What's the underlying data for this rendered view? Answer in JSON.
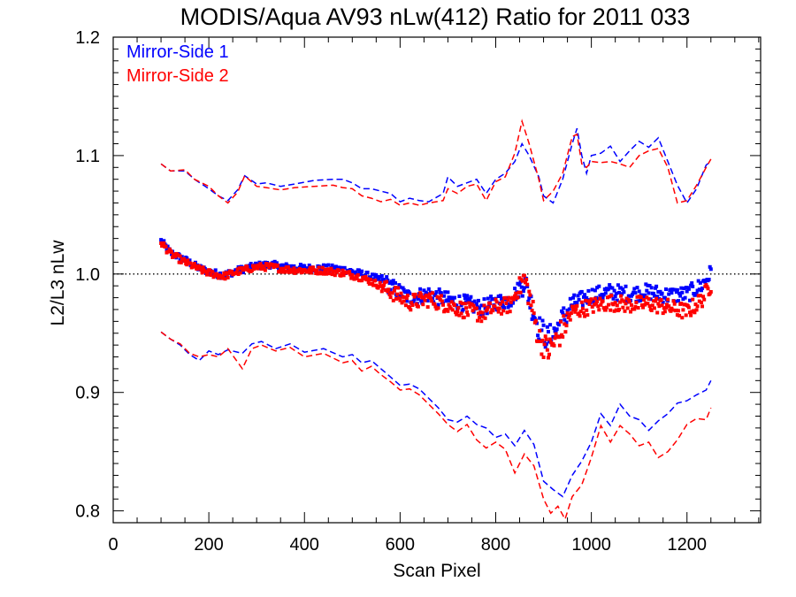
{
  "chart_data": {
    "type": "scatter",
    "title": "MODIS/Aqua AV93 nLw(412) Ratio for 2011 033",
    "xlabel": "Scan Pixel",
    "ylabel": "L2/L3 nLw",
    "xlim": [
      0,
      1354
    ],
    "ylim": [
      0.79,
      1.2
    ],
    "x_ticks": [
      "0",
      "200",
      "400",
      "600",
      "800",
      "1000",
      "1200"
    ],
    "y_ticks": [
      "0.8",
      "0.9",
      "1.0",
      "1.1",
      "1.2"
    ],
    "reference_line": {
      "y": 1.0,
      "style": "dotted"
    },
    "legend": {
      "placement": "top-left"
    },
    "series": [
      {
        "name": "Mirror-Side 1",
        "color": "#0000ff",
        "mean_anchors": [
          [
            100,
            1.028
          ],
          [
            120,
            1.018
          ],
          [
            150,
            1.012
          ],
          [
            180,
            1.005
          ],
          [
            200,
            1.002
          ],
          [
            230,
            0.999
          ],
          [
            260,
            1.003
          ],
          [
            300,
            1.007
          ],
          [
            330,
            1.008
          ],
          [
            360,
            1.006
          ],
          [
            400,
            1.005
          ],
          [
            440,
            1.005
          ],
          [
            480,
            1.004
          ],
          [
            520,
            1.0
          ],
          [
            560,
            0.995
          ],
          [
            590,
            0.987
          ],
          [
            620,
            0.98
          ],
          [
            660,
            0.983
          ],
          [
            700,
            0.978
          ],
          [
            740,
            0.975
          ],
          [
            770,
            0.971
          ],
          [
            800,
            0.976
          ],
          [
            830,
            0.978
          ],
          [
            850,
            0.988
          ],
          [
            860,
            0.995
          ],
          [
            870,
            0.98
          ],
          [
            890,
            0.955
          ],
          [
            910,
            0.945
          ],
          [
            930,
            0.955
          ],
          [
            960,
            0.975
          ],
          [
            1000,
            0.982
          ],
          [
            1040,
            0.985
          ],
          [
            1080,
            0.983
          ],
          [
            1120,
            0.985
          ],
          [
            1160,
            0.982
          ],
          [
            1200,
            0.983
          ],
          [
            1230,
            0.99
          ],
          [
            1250,
            1.001
          ]
        ],
        "upper_envelope": [
          [
            100,
            1.093
          ],
          [
            120,
            1.087
          ],
          [
            150,
            1.087
          ],
          [
            170,
            1.08
          ],
          [
            200,
            1.072
          ],
          [
            220,
            1.066
          ],
          [
            240,
            1.062
          ],
          [
            260,
            1.071
          ],
          [
            275,
            1.083
          ],
          [
            300,
            1.076
          ],
          [
            320,
            1.077
          ],
          [
            350,
            1.074
          ],
          [
            380,
            1.076
          ],
          [
            420,
            1.079
          ],
          [
            460,
            1.08
          ],
          [
            480,
            1.08
          ],
          [
            500,
            1.077
          ],
          [
            520,
            1.072
          ],
          [
            540,
            1.072
          ],
          [
            560,
            1.07
          ],
          [
            580,
            1.068
          ],
          [
            600,
            1.061
          ],
          [
            620,
            1.064
          ],
          [
            640,
            1.062
          ],
          [
            660,
            1.061
          ],
          [
            690,
            1.068
          ],
          [
            700,
            1.082
          ],
          [
            720,
            1.074
          ],
          [
            740,
            1.077
          ],
          [
            760,
            1.08
          ],
          [
            780,
            1.068
          ],
          [
            800,
            1.08
          ],
          [
            820,
            1.085
          ],
          [
            840,
            1.095
          ],
          [
            855,
            1.11
          ],
          [
            870,
            1.1
          ],
          [
            890,
            1.082
          ],
          [
            900,
            1.066
          ],
          [
            920,
            1.06
          ],
          [
            940,
            1.08
          ],
          [
            960,
            1.11
          ],
          [
            970,
            1.123
          ],
          [
            980,
            1.1
          ],
          [
            990,
            1.085
          ],
          [
            1000,
            1.1
          ],
          [
            1020,
            1.102
          ],
          [
            1040,
            1.108
          ],
          [
            1060,
            1.095
          ],
          [
            1080,
            1.104
          ],
          [
            1100,
            1.112
          ],
          [
            1120,
            1.107
          ],
          [
            1140,
            1.115
          ],
          [
            1160,
            1.095
          ],
          [
            1180,
            1.075
          ],
          [
            1200,
            1.06
          ],
          [
            1220,
            1.072
          ],
          [
            1240,
            1.092
          ],
          [
            1250,
            1.095
          ]
        ],
        "lower_envelope": [
          [
            100,
            0.951
          ],
          [
            120,
            0.945
          ],
          [
            140,
            0.94
          ],
          [
            160,
            0.932
          ],
          [
            180,
            0.927
          ],
          [
            200,
            0.935
          ],
          [
            220,
            0.932
          ],
          [
            240,
            0.936
          ],
          [
            270,
            0.933
          ],
          [
            290,
            0.941
          ],
          [
            310,
            0.943
          ],
          [
            340,
            0.937
          ],
          [
            370,
            0.941
          ],
          [
            400,
            0.934
          ],
          [
            440,
            0.937
          ],
          [
            480,
            0.93
          ],
          [
            500,
            0.932
          ],
          [
            520,
            0.925
          ],
          [
            540,
            0.927
          ],
          [
            560,
            0.92
          ],
          [
            580,
            0.913
          ],
          [
            600,
            0.906
          ],
          [
            620,
            0.907
          ],
          [
            640,
            0.903
          ],
          [
            660,
            0.895
          ],
          [
            680,
            0.887
          ],
          [
            700,
            0.877
          ],
          [
            720,
            0.875
          ],
          [
            740,
            0.88
          ],
          [
            760,
            0.873
          ],
          [
            780,
            0.87
          ],
          [
            800,
            0.862
          ],
          [
            820,
            0.865
          ],
          [
            840,
            0.855
          ],
          [
            860,
            0.868
          ],
          [
            880,
            0.856
          ],
          [
            900,
            0.825
          ],
          [
            920,
            0.818
          ],
          [
            940,
            0.812
          ],
          [
            960,
            0.83
          ],
          [
            980,
            0.842
          ],
          [
            1000,
            0.858
          ],
          [
            1020,
            0.882
          ],
          [
            1040,
            0.872
          ],
          [
            1060,
            0.89
          ],
          [
            1080,
            0.88
          ],
          [
            1100,
            0.877
          ],
          [
            1120,
            0.868
          ],
          [
            1140,
            0.876
          ],
          [
            1160,
            0.882
          ],
          [
            1180,
            0.891
          ],
          [
            1200,
            0.893
          ],
          [
            1220,
            0.898
          ],
          [
            1240,
            0.902
          ],
          [
            1250,
            0.91
          ]
        ]
      },
      {
        "name": "Mirror-Side 2",
        "color": "#ff0000",
        "mean_anchors": [
          [
            100,
            1.027
          ],
          [
            120,
            1.017
          ],
          [
            150,
            1.01
          ],
          [
            180,
            1.004
          ],
          [
            200,
            1.001
          ],
          [
            230,
            0.998
          ],
          [
            260,
            1.002
          ],
          [
            300,
            1.006
          ],
          [
            330,
            1.006
          ],
          [
            360,
            1.004
          ],
          [
            400,
            1.003
          ],
          [
            440,
            1.003
          ],
          [
            480,
            1.001
          ],
          [
            520,
            0.997
          ],
          [
            560,
            0.99
          ],
          [
            590,
            0.983
          ],
          [
            620,
            0.976
          ],
          [
            660,
            0.979
          ],
          [
            700,
            0.974
          ],
          [
            740,
            0.969
          ],
          [
            770,
            0.966
          ],
          [
            800,
            0.972
          ],
          [
            830,
            0.974
          ],
          [
            850,
            0.99
          ],
          [
            860,
            0.996
          ],
          [
            870,
            0.982
          ],
          [
            890,
            0.946
          ],
          [
            910,
            0.935
          ],
          [
            930,
            0.946
          ],
          [
            960,
            0.968
          ],
          [
            1000,
            0.973
          ],
          [
            1040,
            0.976
          ],
          [
            1080,
            0.974
          ],
          [
            1120,
            0.975
          ],
          [
            1160,
            0.972
          ],
          [
            1200,
            0.968
          ],
          [
            1230,
            0.978
          ],
          [
            1250,
            0.991
          ]
        ],
        "upper_envelope": [
          [
            100,
            1.093
          ],
          [
            120,
            1.087
          ],
          [
            150,
            1.088
          ],
          [
            170,
            1.08
          ],
          [
            200,
            1.074
          ],
          [
            220,
            1.066
          ],
          [
            240,
            1.06
          ],
          [
            260,
            1.069
          ],
          [
            275,
            1.083
          ],
          [
            300,
            1.074
          ],
          [
            320,
            1.073
          ],
          [
            350,
            1.071
          ],
          [
            380,
            1.073
          ],
          [
            420,
            1.074
          ],
          [
            460,
            1.075
          ],
          [
            480,
            1.073
          ],
          [
            500,
            1.072
          ],
          [
            520,
            1.066
          ],
          [
            540,
            1.064
          ],
          [
            560,
            1.061
          ],
          [
            580,
            1.063
          ],
          [
            600,
            1.058
          ],
          [
            620,
            1.06
          ],
          [
            640,
            1.058
          ],
          [
            660,
            1.06
          ],
          [
            690,
            1.062
          ],
          [
            700,
            1.072
          ],
          [
            720,
            1.068
          ],
          [
            740,
            1.074
          ],
          [
            760,
            1.076
          ],
          [
            780,
            1.062
          ],
          [
            800,
            1.078
          ],
          [
            820,
            1.082
          ],
          [
            840,
            1.102
          ],
          [
            855,
            1.129
          ],
          [
            870,
            1.11
          ],
          [
            890,
            1.08
          ],
          [
            900,
            1.062
          ],
          [
            920,
            1.07
          ],
          [
            940,
            1.085
          ],
          [
            960,
            1.116
          ],
          [
            970,
            1.118
          ],
          [
            980,
            1.093
          ],
          [
            990,
            1.09
          ],
          [
            1000,
            1.095
          ],
          [
            1020,
            1.094
          ],
          [
            1040,
            1.095
          ],
          [
            1060,
            1.093
          ],
          [
            1080,
            1.09
          ],
          [
            1100,
            1.1
          ],
          [
            1120,
            1.104
          ],
          [
            1140,
            1.106
          ],
          [
            1160,
            1.09
          ],
          [
            1180,
            1.06
          ],
          [
            1200,
            1.062
          ],
          [
            1220,
            1.075
          ],
          [
            1240,
            1.09
          ],
          [
            1250,
            1.097
          ]
        ],
        "lower_envelope": [
          [
            100,
            0.951
          ],
          [
            120,
            0.945
          ],
          [
            140,
            0.941
          ],
          [
            160,
            0.933
          ],
          [
            180,
            0.93
          ],
          [
            200,
            0.932
          ],
          [
            220,
            0.93
          ],
          [
            240,
            0.937
          ],
          [
            270,
            0.92
          ],
          [
            290,
            0.937
          ],
          [
            310,
            0.94
          ],
          [
            340,
            0.935
          ],
          [
            370,
            0.938
          ],
          [
            400,
            0.93
          ],
          [
            440,
            0.933
          ],
          [
            480,
            0.925
          ],
          [
            500,
            0.927
          ],
          [
            520,
            0.918
          ],
          [
            540,
            0.922
          ],
          [
            560,
            0.915
          ],
          [
            580,
            0.909
          ],
          [
            600,
            0.902
          ],
          [
            620,
            0.903
          ],
          [
            640,
            0.898
          ],
          [
            660,
            0.89
          ],
          [
            680,
            0.882
          ],
          [
            700,
            0.873
          ],
          [
            720,
            0.867
          ],
          [
            740,
            0.873
          ],
          [
            760,
            0.86
          ],
          [
            780,
            0.853
          ],
          [
            800,
            0.858
          ],
          [
            820,
            0.852
          ],
          [
            840,
            0.832
          ],
          [
            860,
            0.848
          ],
          [
            880,
            0.838
          ],
          [
            900,
            0.81
          ],
          [
            915,
            0.798
          ],
          [
            930,
            0.804
          ],
          [
            945,
            0.793
          ],
          [
            960,
            0.812
          ],
          [
            980,
            0.822
          ],
          [
            1000,
            0.845
          ],
          [
            1020,
            0.872
          ],
          [
            1040,
            0.858
          ],
          [
            1060,
            0.872
          ],
          [
            1080,
            0.865
          ],
          [
            1100,
            0.855
          ],
          [
            1120,
            0.858
          ],
          [
            1140,
            0.845
          ],
          [
            1160,
            0.85
          ],
          [
            1180,
            0.86
          ],
          [
            1200,
            0.873
          ],
          [
            1220,
            0.878
          ],
          [
            1240,
            0.877
          ],
          [
            1250,
            0.887
          ]
        ]
      }
    ]
  }
}
